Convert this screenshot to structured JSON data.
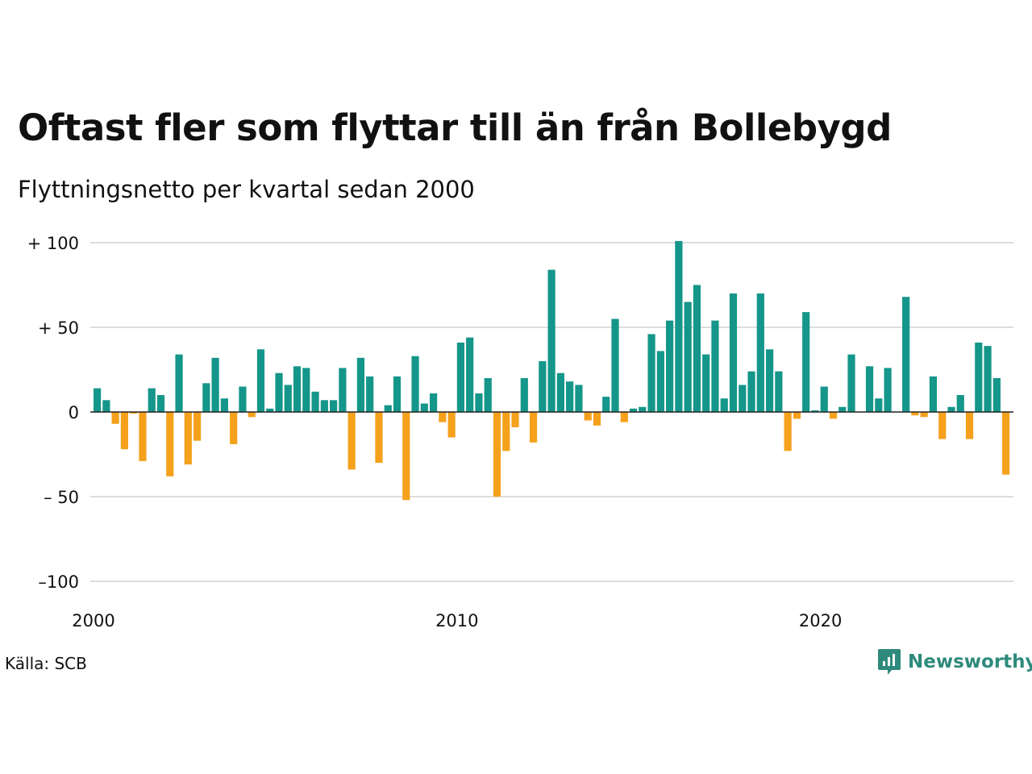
{
  "header": {
    "title": "Oftast fler som flyttar till än från Bollebygd",
    "subtitle": "Flyttningsnetto per kvartal sedan 2000"
  },
  "footer": {
    "source": "Källa: SCB",
    "brand": "Newsworthy"
  },
  "colors": {
    "positive": "#15968a",
    "negative": "#f5a11c",
    "grid": "#dddddd",
    "zero_line": "#222222",
    "brand": "#2e8a7c"
  },
  "icons": {
    "brand_logo": "newsworthy-logo-icon"
  },
  "chart_data": {
    "type": "bar",
    "title": "Oftast fler som flyttar till än från Bollebygd",
    "subtitle": "Flyttningsnetto per kvartal sedan 2000",
    "xlabel": "",
    "ylabel": "",
    "ylim": [
      -100,
      100
    ],
    "y_ticks": [
      100,
      50,
      0,
      -50,
      -100
    ],
    "y_tick_labels": [
      "+ 100",
      "+  50",
      "0",
      "– 50",
      "–100"
    ],
    "x_ticks": [
      2000,
      2010,
      2020
    ],
    "x_tick_labels": [
      "2000",
      "2010",
      "2020"
    ],
    "x_start_year": 2000,
    "periods_per_year": 4,
    "grid": true,
    "legend": "none",
    "values": [
      14,
      7,
      -7,
      -22,
      -1,
      -29,
      14,
      10,
      -38,
      34,
      -31,
      -17,
      17,
      32,
      8,
      -19,
      15,
      -3,
      37,
      2,
      23,
      16,
      27,
      26,
      12,
      7,
      7,
      26,
      -34,
      32,
      21,
      -30,
      4,
      21,
      -52,
      33,
      5,
      11,
      -6,
      -15,
      41,
      44,
      11,
      20,
      -50,
      -23,
      -9,
      20,
      -18,
      30,
      84,
      23,
      18,
      16,
      -5,
      -8,
      9,
      55,
      -6,
      2,
      3,
      46,
      36,
      54,
      101,
      65,
      75,
      34,
      54,
      8,
      70,
      16,
      24,
      70,
      37,
      24,
      -23,
      -4,
      59,
      1,
      15,
      -4,
      3,
      34,
      0,
      27,
      8,
      26,
      0,
      68,
      -2,
      -3,
      21,
      -16,
      3,
      10,
      -16,
      41,
      39,
      20,
      -37
    ]
  }
}
